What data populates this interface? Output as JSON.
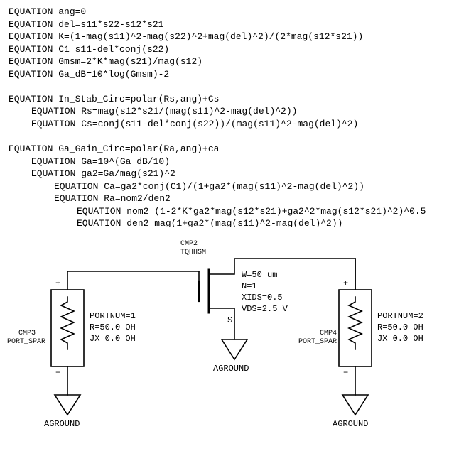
{
  "equations": {
    "lines": [
      {
        "text": "EQUATION ang=0",
        "indent": 0
      },
      {
        "text": "EQUATION del=s11*s22-s12*s21",
        "indent": 0
      },
      {
        "text": "EQUATION K=(1-mag(s11)^2-mag(s22)^2+mag(del)^2)/(2*mag(s12*s21))",
        "indent": 0
      },
      {
        "text": "EQUATION C1=s11-del*conj(s22)",
        "indent": 0
      },
      {
        "text": "EQUATION Gmsm=2*K*mag(s21)/mag(s12)",
        "indent": 0
      },
      {
        "text": "EQUATION Ga_dB=10*log(Gmsm)-2",
        "indent": 0
      },
      {
        "text": "",
        "indent": 0
      },
      {
        "text": "EQUATION In_Stab_Circ=polar(Rs,ang)+Cs",
        "indent": 0
      },
      {
        "text": "EQUATION Rs=mag(s12*s21/(mag(s11)^2-mag(del)^2))",
        "indent": 1
      },
      {
        "text": "EQUATION Cs=conj(s11-del*conj(s22))/(mag(s11)^2-mag(del)^2)",
        "indent": 1
      },
      {
        "text": "",
        "indent": 0
      },
      {
        "text": "EQUATION Ga_Gain_Circ=polar(Ra,ang)+ca",
        "indent": 0
      },
      {
        "text": "EQUATION Ga=10^(Ga_dB/10)",
        "indent": 1
      },
      {
        "text": "EQUATION ga2=Ga/mag(s21)^2",
        "indent": 1
      },
      {
        "text": "EQUATION Ca=ga2*conj(C1)/(1+ga2*(mag(s11)^2-mag(del)^2))",
        "indent": 2
      },
      {
        "text": "EQUATION Ra=nom2/den2",
        "indent": 2
      },
      {
        "text": "EQUATION nom2=(1-2*K*ga2*mag(s12*s21)+ga2^2*mag(s12*s21)^2)^0.5",
        "indent": 3
      },
      {
        "text": "EQUATION den2=mag(1+ga2*(mag(s11)^2-mag(del)^2))",
        "indent": 3
      }
    ]
  },
  "schematic": {
    "colors": {
      "stroke": "#000000",
      "bg": "#ffffff"
    },
    "cmp2": {
      "ref": "CMP2",
      "name": "TQHHSM",
      "params": [
        "W=50 um",
        "N=1",
        "XIDS=0.5",
        "VDS=2.5 V"
      ],
      "s_label": "S"
    },
    "port_left": {
      "ref": "CMP3",
      "name": "PORT_SPAR",
      "params": [
        "PORTNUM=1",
        "R=50.0 OH",
        "JX=0.0 OH"
      ],
      "plus": "+",
      "minus": "−"
    },
    "port_right": {
      "ref": "CMP4",
      "name": "PORT_SPAR",
      "params": [
        "PORTNUM=2",
        "R=50.0 OH",
        "JX=0.0 OH"
      ],
      "plus": "+",
      "minus": "−"
    },
    "ground_label": "AGROUND"
  }
}
